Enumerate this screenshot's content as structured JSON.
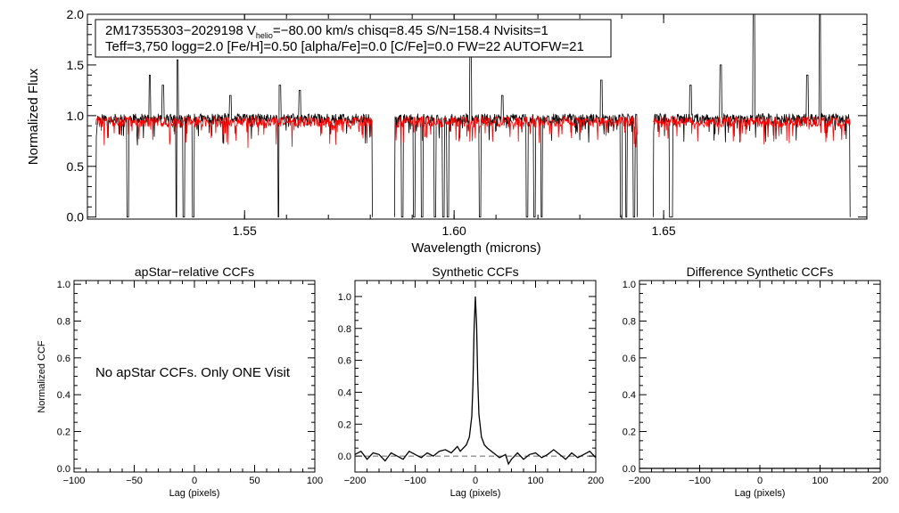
{
  "chart_data": [
    {
      "type": "line",
      "panel": "spectrum",
      "xlabel": "Wavelength (microns)",
      "ylabel": "Normalized Flux",
      "xlim": [
        1.5125,
        1.6985
      ],
      "ylim": [
        -0.02,
        2.0
      ],
      "xticks": [
        1.55,
        1.6,
        1.65
      ],
      "xtick_labels": [
        "1.55",
        "1.60",
        "1.65"
      ],
      "yticks": [
        0.0,
        0.5,
        1.0,
        1.5,
        2.0
      ],
      "ytick_labels": [
        "0.0",
        "0.5",
        "1.0",
        "1.5",
        "2.0"
      ],
      "chips": [
        [
          1.5145,
          1.5805
        ],
        [
          1.5858,
          1.6437
        ],
        [
          1.6475,
          1.6945
        ]
      ],
      "info_line1_prefix": "2M17355303−2029198  V",
      "info_line1_sub": "helio",
      "info_line1_suffix": "=−80.00 km/s  chisq=8.45  S/N=158.4  Nvisits=1",
      "info_line2": "Teff=3,750 logg=2.0 [Fe/H]=0.50 [alpha/Fe]=0.0 [C/Fe]=0.0 FW=22 AUTOFW=21",
      "series": [
        {
          "name": "observed",
          "color": "#000000",
          "continuum": 0.97,
          "noise": 0.05,
          "seed": 11,
          "dips": [
            [
              1.5221,
              0.0
            ],
            [
              1.5338,
              0.0
            ],
            [
              1.5355,
              0.0
            ],
            [
              1.5377,
              0.0
            ],
            [
              1.5582,
              0.0
            ],
            [
              1.5876,
              0.0
            ],
            [
              1.5905,
              0.0
            ],
            [
              1.5924,
              0.0
            ],
            [
              1.5954,
              0.0
            ],
            [
              1.5974,
              0.0
            ],
            [
              1.5985,
              0.0
            ],
            [
              1.6062,
              0.0
            ],
            [
              1.6174,
              0.0
            ],
            [
              1.6192,
              0.0
            ],
            [
              1.6209,
              0.0
            ],
            [
              1.6399,
              0.0
            ],
            [
              1.6411,
              0.0
            ],
            [
              1.6429,
              0.0
            ],
            [
              1.6516,
              0.0
            ],
            [
              1.6519,
              0.0
            ]
          ],
          "spikes": [
            [
              1.5274,
              1.4
            ],
            [
              1.5305,
              1.3
            ],
            [
              1.534,
              1.55
            ],
            [
              1.5466,
              1.2
            ],
            [
              1.5584,
              1.3
            ],
            [
              1.5632,
              1.25
            ],
            [
              1.6039,
              1.6
            ],
            [
              1.6115,
              1.2
            ],
            [
              1.6351,
              1.35
            ],
            [
              1.6564,
              1.3
            ],
            [
              1.6636,
              1.5
            ],
            [
              1.6715,
              2.0
            ],
            [
              1.6843,
              1.4
            ],
            [
              1.6873,
              2.0
            ]
          ]
        },
        {
          "name": "model",
          "color": "#ff0000",
          "continuum": 0.94,
          "noise": 0.055,
          "seed": 29,
          "dips": [],
          "spikes": []
        }
      ]
    },
    {
      "type": "line",
      "panel": "apstar_ccf",
      "title": "apStar−relative CCFs",
      "xlabel": "Lag (pixels)",
      "ylabel": "Normalized CCF",
      "xlim": [
        -100,
        100
      ],
      "ylim": [
        -0.02,
        1.02
      ],
      "xticks": [
        -100,
        -50,
        0,
        50,
        100
      ],
      "xtick_labels": [
        "−100",
        "−50",
        "0",
        "50",
        "100"
      ],
      "yticks": [
        0.0,
        0.2,
        0.4,
        0.6,
        0.8,
        1.0
      ],
      "ytick_labels": [
        "0.0",
        "0.2",
        "0.4",
        "0.6",
        "0.8",
        "1.0"
      ],
      "note": "No apStar CCFs.  Only ONE Visit",
      "series": []
    },
    {
      "type": "line",
      "panel": "synthetic_ccf",
      "title": "Synthetic CCFs",
      "xlabel": "Lag (pixels)",
      "xlim": [
        -200,
        200
      ],
      "ylim": [
        -0.1,
        1.1
      ],
      "xticks": [
        -200,
        -100,
        0,
        100,
        200
      ],
      "xtick_labels": [
        "−200",
        "−100",
        "0",
        "100",
        "200"
      ],
      "yticks": [
        0.0,
        0.2,
        0.4,
        0.6,
        0.8,
        1.0
      ],
      "ytick_labels": [
        "0.0",
        "0.2",
        "0.4",
        "0.6",
        "0.8",
        "1.0"
      ],
      "baseline": 0.0,
      "series": [
        {
          "name": "ccf",
          "color": "#000000",
          "peak_lag": 0,
          "peak_value": 1.0,
          "points": [
            [
              -200,
              0.01
            ],
            [
              -190,
              0.03
            ],
            [
              -180,
              -0.02
            ],
            [
              -170,
              0.02
            ],
            [
              -160,
              0.01
            ],
            [
              -150,
              -0.03
            ],
            [
              -140,
              0.02
            ],
            [
              -130,
              0.0
            ],
            [
              -120,
              -0.02
            ],
            [
              -110,
              0.03
            ],
            [
              -100,
              0.01
            ],
            [
              -90,
              -0.01
            ],
            [
              -80,
              0.02
            ],
            [
              -70,
              0.0
            ],
            [
              -60,
              0.03
            ],
            [
              -50,
              0.04
            ],
            [
              -40,
              0.02
            ],
            [
              -30,
              0.06
            ],
            [
              -25,
              0.03
            ],
            [
              -20,
              0.05
            ],
            [
              -15,
              0.07
            ],
            [
              -10,
              0.12
            ],
            [
              -6,
              0.25
            ],
            [
              -4,
              0.45
            ],
            [
              -2,
              0.8
            ],
            [
              0,
              1.0
            ],
            [
              2,
              0.82
            ],
            [
              4,
              0.47
            ],
            [
              6,
              0.26
            ],
            [
              10,
              0.12
            ],
            [
              15,
              0.07
            ],
            [
              20,
              0.05
            ],
            [
              30,
              0.02
            ],
            [
              40,
              -0.01
            ],
            [
              50,
              0.01
            ],
            [
              55,
              -0.05
            ],
            [
              60,
              -0.02
            ],
            [
              70,
              0.02
            ],
            [
              80,
              -0.02
            ],
            [
              90,
              0.01
            ],
            [
              100,
              0.02
            ],
            [
              110,
              -0.01
            ],
            [
              120,
              0.01
            ],
            [
              130,
              0.04
            ],
            [
              140,
              0.01
            ],
            [
              150,
              -0.02
            ],
            [
              160,
              0.02
            ],
            [
              170,
              -0.01
            ],
            [
              180,
              0.01
            ],
            [
              190,
              0.03
            ],
            [
              200,
              -0.01
            ]
          ]
        }
      ]
    },
    {
      "type": "line",
      "panel": "difference_ccf",
      "title": "Difference Synthetic CCFs",
      "xlabel": "Lag (pixels)",
      "xlim": [
        -200,
        200
      ],
      "ylim": [
        -0.02,
        1.02
      ],
      "xticks": [
        -200,
        -100,
        0,
        100,
        200
      ],
      "xtick_labels": [
        "−200",
        "−100",
        "0",
        "100",
        "200"
      ],
      "yticks": [
        0.0,
        0.2,
        0.4,
        0.6,
        0.8,
        1.0
      ],
      "ytick_labels": [
        "0.0",
        "0.2",
        "0.4",
        "0.6",
        "0.8",
        "1.0"
      ],
      "series": [
        {
          "name": "difference",
          "color": "#000000",
          "points": [
            [
              -200,
              0.0
            ],
            [
              200,
              0.0
            ]
          ]
        }
      ]
    }
  ]
}
